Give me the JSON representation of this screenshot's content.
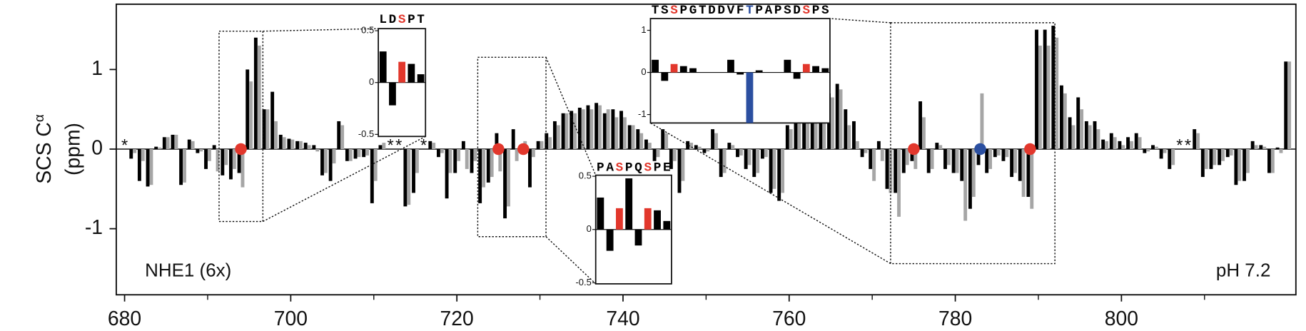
{
  "chart_data": {
    "type": "bar",
    "ylabel": "SCS C",
    "ylabel_sup": "α",
    "ylabel_unit": "(ppm)",
    "annotations": [
      {
        "text": "NHE1 (6x)"
      },
      {
        "text": "pH 7.2"
      }
    ],
    "xlim": [
      679,
      821
    ],
    "ylim": [
      -1.83,
      1.82
    ],
    "xticks": [
      680,
      700,
      720,
      740,
      760,
      780,
      800
    ],
    "xminor_ticks": [
      690,
      710,
      730,
      750,
      770,
      790,
      810
    ],
    "yticks": [
      -1,
      0,
      1
    ],
    "x": [
      680,
      681,
      682,
      683,
      684,
      685,
      686,
      687,
      688,
      689,
      690,
      691,
      692,
      693,
      694,
      695,
      696,
      697,
      698,
      699,
      700,
      701,
      702,
      703,
      704,
      705,
      706,
      707,
      708,
      709,
      710,
      711,
      712,
      713,
      714,
      715,
      716,
      717,
      718,
      719,
      720,
      721,
      722,
      723,
      724,
      725,
      726,
      727,
      728,
      729,
      730,
      731,
      732,
      733,
      734,
      735,
      736,
      737,
      738,
      739,
      740,
      741,
      742,
      743,
      744,
      745,
      746,
      747,
      748,
      749,
      750,
      751,
      752,
      753,
      754,
      755,
      756,
      757,
      758,
      759,
      760,
      761,
      762,
      763,
      764,
      765,
      766,
      767,
      768,
      769,
      770,
      771,
      772,
      773,
      774,
      775,
      776,
      777,
      778,
      779,
      780,
      781,
      782,
      783,
      784,
      785,
      786,
      787,
      788,
      789,
      790,
      791,
      792,
      793,
      794,
      795,
      796,
      797,
      798,
      799,
      800,
      801,
      802,
      803,
      804,
      805,
      806,
      807,
      808,
      809,
      810,
      811,
      812,
      813,
      814,
      815,
      816,
      817,
      818,
      819,
      820
    ],
    "series": [
      {
        "color": "#000000",
        "values": [
          null,
          -0.12,
          -0.4,
          -0.47,
          0.03,
          0.15,
          0.18,
          -0.45,
          0.12,
          -0.05,
          -0.25,
          0.05,
          -0.33,
          -0.38,
          -0.3,
          1.0,
          1.4,
          0.5,
          0.72,
          0.18,
          0.13,
          0.1,
          0.08,
          0.05,
          -0.33,
          -0.4,
          0.35,
          -0.15,
          -0.12,
          -0.1,
          -0.68,
          0.05,
          null,
          null,
          -0.72,
          -0.55,
          null,
          0.1,
          -0.1,
          -0.62,
          -0.3,
          0.1,
          -0.3,
          -0.68,
          -0.42,
          0.2,
          -0.87,
          0.25,
          0.05,
          -0.48,
          0.1,
          0.2,
          0.35,
          0.45,
          0.48,
          0.52,
          0.55,
          0.58,
          0.45,
          0.5,
          0.48,
          0.3,
          0.25,
          0.12,
          -0.15,
          0.25,
          -0.25,
          -0.55,
          0.1,
          0.05,
          -0.05,
          0.25,
          -0.35,
          0.08,
          -0.1,
          -0.25,
          -0.35,
          -0.12,
          -0.55,
          -0.65,
          0.3,
          0.35,
          0.42,
          0.5,
          0.6,
          0.7,
          0.82,
          0.5,
          0.35,
          -0.1,
          -0.25,
          0.1,
          -0.5,
          -0.55,
          -0.3,
          -0.15,
          0.6,
          -0.3,
          0.08,
          -0.25,
          -0.3,
          -0.4,
          -0.75,
          -0.2,
          -0.3,
          -0.1,
          -0.15,
          -0.35,
          -0.4,
          -0.6,
          1.5,
          1.5,
          1.55,
          0.8,
          0.4,
          0.65,
          0.35,
          0.35,
          0.12,
          0.2,
          0.1,
          0.15,
          0.2,
          -0.05,
          0.05,
          -0.12,
          -0.25,
          null,
          null,
          0.25,
          -0.35,
          -0.25,
          -0.2,
          -0.1,
          -0.45,
          -0.4,
          0.1,
          0.05,
          -0.3,
          0.02,
          1.1
        ]
      },
      {
        "color": "#a6a6a6",
        "values": [
          null,
          -0.05,
          -0.15,
          -0.45,
          0.02,
          0.15,
          0.18,
          -0.42,
          0.1,
          -0.03,
          -0.15,
          -0.28,
          -0.2,
          -0.25,
          -0.48,
          0.85,
          1.3,
          0.5,
          0.35,
          0.15,
          0.12,
          0.1,
          0.05,
          -0.03,
          -0.3,
          -0.18,
          0.3,
          -0.15,
          -0.1,
          -0.08,
          -0.4,
          0.08,
          null,
          null,
          -0.7,
          -0.3,
          null,
          0.08,
          -0.05,
          -0.3,
          -0.15,
          -0.25,
          -0.15,
          -0.48,
          -0.35,
          -0.28,
          -0.72,
          -0.15,
          0.1,
          -0.1,
          0.1,
          0.15,
          0.3,
          0.45,
          0.45,
          0.5,
          0.5,
          0.55,
          0.5,
          0.4,
          0.4,
          0.3,
          0.2,
          0.08,
          -0.1,
          0.2,
          -0.15,
          -0.4,
          0.08,
          0.03,
          -0.03,
          0.2,
          -0.3,
          0.05,
          -0.08,
          -0.2,
          -0.3,
          -0.1,
          -0.5,
          -0.55,
          0.25,
          0.32,
          0.4,
          0.45,
          0.55,
          0.65,
          0.75,
          0.3,
          0.1,
          -0.05,
          -0.4,
          -0.15,
          -0.55,
          -0.85,
          -0.2,
          -0.25,
          0.4,
          -0.25,
          0.05,
          -0.2,
          -0.3,
          -0.9,
          -0.6,
          0.7,
          -0.25,
          -0.08,
          -0.1,
          -0.3,
          -0.6,
          -0.75,
          1.3,
          1.3,
          1.4,
          0.7,
          0.3,
          0.5,
          0.3,
          0.25,
          0.1,
          0.15,
          0.05,
          0.1,
          0.15,
          -0.03,
          0.03,
          -0.05,
          -0.2,
          null,
          null,
          0.2,
          -0.25,
          -0.2,
          -0.15,
          -0.08,
          -0.4,
          -0.3,
          0.05,
          0.03,
          -0.3,
          -0.05,
          1.1
        ]
      }
    ],
    "asterisks": [
      {
        "text": "*",
        "x": 680
      },
      {
        "text": "*",
        "x": 712
      },
      {
        "text": "*",
        "x": 713
      },
      {
        "text": "*",
        "x": 716
      },
      {
        "text": "*",
        "x": 807
      },
      {
        "text": "*",
        "x": 808
      }
    ],
    "markers": [
      {
        "x": 694,
        "y": 0,
        "color": "#e2372c"
      },
      {
        "x": 725,
        "y": 0,
        "color": "#e2372c"
      },
      {
        "x": 728,
        "y": 0,
        "color": "#e2372c"
      },
      {
        "x": 775,
        "y": 0,
        "color": "#e2372c"
      },
      {
        "x": 783,
        "y": 0,
        "color": "#2b4fa0"
      },
      {
        "x": 789,
        "y": 0,
        "color": "#e2372c"
      }
    ],
    "insets": [
      {
        "sequence": [
          "L",
          "D",
          "S",
          "P",
          "T"
        ],
        "colors": [
          "#000000",
          "#000000",
          "#e2372c",
          "#000000",
          "#000000"
        ],
        "values": [
          0.3,
          -0.22,
          0.2,
          0.18,
          0.08
        ],
        "ylim": [
          -0.52,
          0.52
        ],
        "yticks": [
          -0.5,
          0,
          0.5
        ]
      },
      {
        "sequence": [
          "P",
          "A",
          "S",
          "P",
          "Q",
          "S",
          "P",
          "E"
        ],
        "colors": [
          "#000000",
          "#000000",
          "#e2372c",
          "#000000",
          "#000000",
          "#e2372c",
          "#000000",
          "#000000"
        ],
        "values": [
          0.3,
          -0.2,
          0.2,
          0.48,
          -0.15,
          0.2,
          0.18,
          0.08
        ],
        "ylim": [
          -0.51,
          0.51
        ],
        "yticks": [
          -0.5,
          0,
          0.5
        ]
      },
      {
        "sequence": [
          "T",
          "S",
          "S",
          "P",
          "G",
          "T",
          "D",
          "D",
          "V",
          "F",
          "T",
          "P",
          "A",
          "P",
          "S",
          "D",
          "S",
          "P",
          "S"
        ],
        "colors": [
          "#000000",
          "#000000",
          "#e2372c",
          "#000000",
          "#000000",
          "#000000",
          "#000000",
          "#000000",
          "#000000",
          "#000000",
          "#2b4fa0",
          "#000000",
          "#000000",
          "#000000",
          "#000000",
          "#000000",
          "#e2372c",
          "#000000",
          "#000000"
        ],
        "values": [
          0.3,
          -0.2,
          0.2,
          0.15,
          0.1,
          0,
          0,
          0,
          0.3,
          -0.05,
          -1.2,
          0.05,
          0,
          0,
          0.3,
          -0.15,
          0.2,
          0.15,
          0.1
        ],
        "ylim": [
          -1.2,
          1.28
        ],
        "yticks": [
          -1,
          0,
          1
        ]
      }
    ]
  }
}
